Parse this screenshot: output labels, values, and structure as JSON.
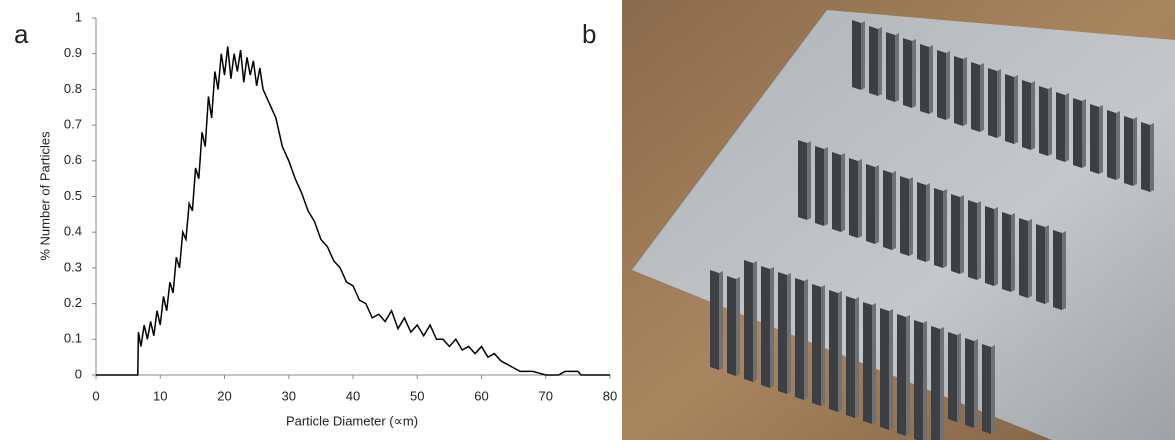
{
  "panel_labels": [
    "a",
    "b"
  ],
  "chart_data": {
    "type": "line",
    "x_label": "Particle Diameter (∝m)",
    "y_label": "% Number of Particles",
    "x": [
      0,
      5,
      6.5,
      6.6,
      7,
      7.5,
      8,
      8.5,
      9,
      9.5,
      10,
      10.5,
      11,
      11.5,
      12,
      12.5,
      13,
      13.5,
      14,
      14.5,
      15,
      15.5,
      16,
      16.5,
      17,
      17.5,
      18,
      18.5,
      19,
      19.5,
      20,
      20.5,
      21,
      21.5,
      22,
      22.5,
      23,
      23.5,
      24,
      24.5,
      25,
      25.5,
      26,
      27,
      28,
      29,
      30,
      31,
      32,
      33,
      34,
      35,
      36,
      37,
      38,
      39,
      40,
      41,
      42,
      43,
      44,
      45,
      46,
      47,
      48,
      49,
      50,
      51,
      52,
      53,
      54,
      55,
      56,
      57,
      58,
      59,
      60,
      61,
      62,
      63,
      64,
      65,
      66,
      67,
      68,
      69,
      70,
      72,
      73,
      75,
      75.5,
      80
    ],
    "series": [
      {
        "color": "#000000",
        "values": [
          0,
          0,
          0,
          0.12,
          0.08,
          0.14,
          0.1,
          0.15,
          0.11,
          0.18,
          0.14,
          0.22,
          0.18,
          0.26,
          0.23,
          0.33,
          0.3,
          0.4,
          0.38,
          0.48,
          0.46,
          0.58,
          0.55,
          0.68,
          0.64,
          0.78,
          0.72,
          0.85,
          0.8,
          0.9,
          0.84,
          0.92,
          0.83,
          0.9,
          0.85,
          0.91,
          0.82,
          0.89,
          0.84,
          0.88,
          0.81,
          0.86,
          0.8,
          0.76,
          0.72,
          0.64,
          0.6,
          0.55,
          0.51,
          0.46,
          0.43,
          0.38,
          0.36,
          0.32,
          0.3,
          0.26,
          0.25,
          0.21,
          0.2,
          0.16,
          0.17,
          0.15,
          0.18,
          0.13,
          0.16,
          0.12,
          0.14,
          0.11,
          0.14,
          0.1,
          0.1,
          0.08,
          0.1,
          0.07,
          0.08,
          0.06,
          0.08,
          0.05,
          0.06,
          0.04,
          0.03,
          0.02,
          0.01,
          0.01,
          0.01,
          0.005,
          0,
          0,
          0.01,
          0.01,
          0,
          0
        ]
      }
    ],
    "xlim": [
      0,
      80
    ],
    "xticks": [
      0,
      10,
      20,
      30,
      40,
      50,
      60,
      70,
      80
    ],
    "ylim": [
      0,
      1
    ],
    "yticks": [
      0,
      0.1,
      0.2,
      0.3,
      0.4,
      0.5,
      0.6,
      0.7,
      0.8,
      0.9,
      1
    ],
    "grid": false
  }
}
